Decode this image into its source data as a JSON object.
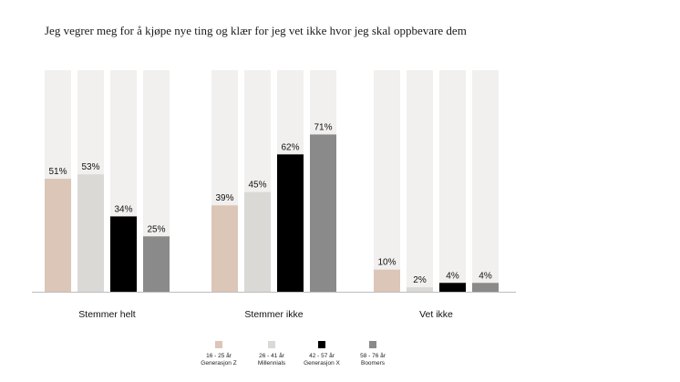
{
  "title": "Jeg vegrer meg for å kjøpe nye ting og klær for jeg vet ikke hvor jeg skal oppbevare dem",
  "colors": {
    "background_bar": "#f1f0ef",
    "axis": "#bdbdbd",
    "series": [
      "#dcc6b8",
      "#dbd9d6",
      "#000000",
      "#8a8a8a"
    ]
  },
  "chart_data": {
    "type": "bar",
    "title": "Jeg vegrer meg for å kjøpe nye ting og klær for jeg vet ikke hvor jeg skal oppbevare dem",
    "xlabel": "",
    "ylabel": "",
    "ylim": [
      0,
      100
    ],
    "value_suffix": "%",
    "grid": false,
    "legend_position": "bottom",
    "categories": [
      "Stemmer helt",
      "Stemmer ikke",
      "Vet ikke"
    ],
    "series": [
      {
        "name": "16 - 25 år Generasjon Z",
        "label_lines": [
          "16 - 25 år",
          "Generasjon Z"
        ],
        "color": "#dcc6b8",
        "values": [
          51,
          39,
          10
        ]
      },
      {
        "name": "26 - 41 år Millennials",
        "label_lines": [
          "26 - 41 år",
          "Millennials"
        ],
        "color": "#dbd9d6",
        "values": [
          53,
          45,
          2
        ]
      },
      {
        "name": "42 - 57 år Generasjon X",
        "label_lines": [
          "42 - 57 år",
          "Generasjon X"
        ],
        "color": "#000000",
        "values": [
          34,
          62,
          4
        ]
      },
      {
        "name": "58 - 76 år Boomers",
        "label_lines": [
          "58 - 76 år",
          "Boomers"
        ],
        "color": "#8a8a8a",
        "values": [
          25,
          71,
          4
        ]
      }
    ]
  }
}
